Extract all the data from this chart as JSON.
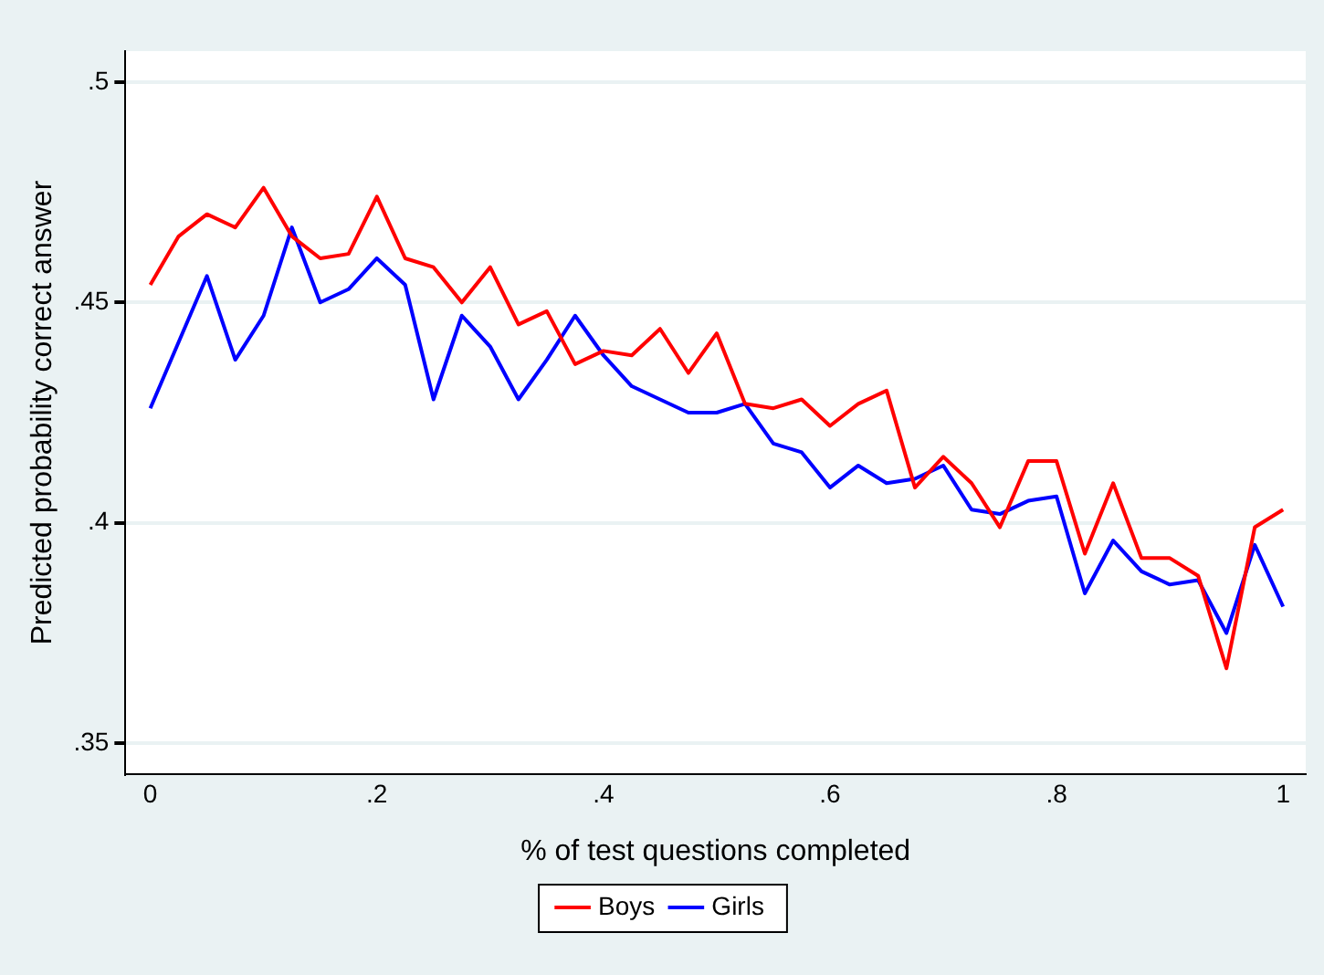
{
  "chart_data": {
    "type": "line",
    "xlabel": "% of test questions completed",
    "ylabel": "Predicted probability correct answer",
    "x": [
      0,
      0.025,
      0.05,
      0.075,
      0.1,
      0.125,
      0.15,
      0.175,
      0.2,
      0.225,
      0.25,
      0.275,
      0.3,
      0.325,
      0.35,
      0.375,
      0.4,
      0.425,
      0.45,
      0.475,
      0.5,
      0.525,
      0.55,
      0.575,
      0.6,
      0.625,
      0.65,
      0.675,
      0.7,
      0.725,
      0.75,
      0.775,
      0.8,
      0.825,
      0.85,
      0.875,
      0.9,
      0.925,
      0.95,
      0.975,
      1
    ],
    "series": [
      {
        "name": "Boys",
        "color": "#ff0000",
        "values": [
          0.454,
          0.465,
          0.47,
          0.467,
          0.476,
          0.465,
          0.46,
          0.461,
          0.474,
          0.46,
          0.458,
          0.45,
          0.458,
          0.445,
          0.448,
          0.436,
          0.439,
          0.438,
          0.444,
          0.434,
          0.443,
          0.427,
          0.426,
          0.428,
          0.422,
          0.427,
          0.43,
          0.408,
          0.415,
          0.409,
          0.399,
          0.414,
          0.414,
          0.393,
          0.409,
          0.392,
          0.392,
          0.388,
          0.367,
          0.399,
          0.403
        ]
      },
      {
        "name": "Girls",
        "color": "#0000ff",
        "values": [
          0.426,
          0.441,
          0.456,
          0.437,
          0.447,
          0.467,
          0.45,
          0.453,
          0.46,
          0.454,
          0.428,
          0.447,
          0.44,
          0.428,
          0.437,
          0.447,
          0.438,
          0.431,
          0.428,
          0.425,
          0.425,
          0.427,
          0.418,
          0.416,
          0.408,
          0.413,
          0.409,
          0.41,
          0.413,
          0.403,
          0.402,
          0.405,
          0.406,
          0.384,
          0.396,
          0.389,
          0.386,
          0.387,
          0.375,
          0.395,
          0.381
        ]
      }
    ],
    "xlim": [
      -0.022,
      1.02
    ],
    "xticks": [
      0,
      {
        "value": 0.2,
        "label": ".2"
      },
      {
        "value": 0.4,
        "label": ".4"
      },
      {
        "value": 0.6,
        "label": ".6"
      },
      {
        "value": 0.8,
        "label": ".8"
      },
      1
    ],
    "ylim": [
      0.343,
      0.507
    ],
    "yticks": [
      {
        "value": 0.35,
        "label": ".35"
      },
      {
        "value": 0.4,
        "label": ".4"
      },
      {
        "value": 0.45,
        "label": ".45"
      },
      {
        "value": 0.5,
        "label": ".5"
      }
    ],
    "grid": "y",
    "legend": "bottom",
    "marker": "none",
    "line_style": "solid"
  }
}
